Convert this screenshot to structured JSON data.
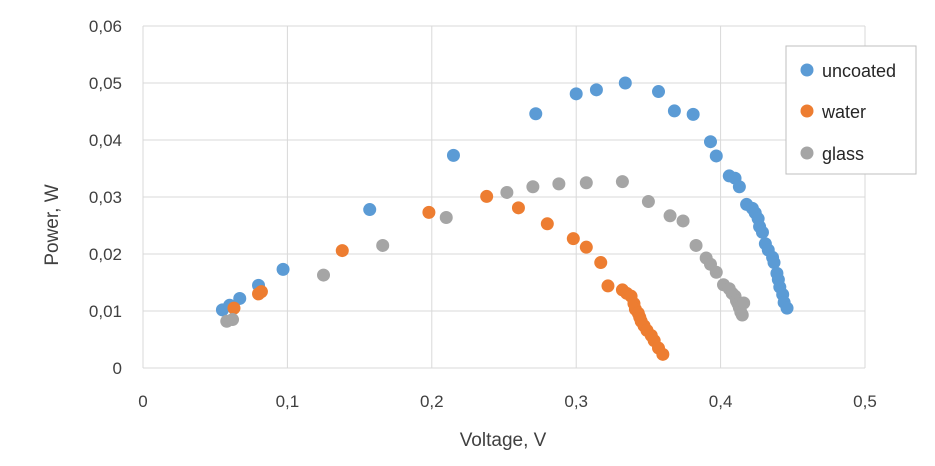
{
  "chart_data": {
    "type": "scatter",
    "title": "",
    "xlabel": "Voltage, V",
    "ylabel": "Power, W",
    "xlim": [
      0,
      0.5
    ],
    "ylim": [
      0,
      0.06
    ],
    "x_ticks": [
      0,
      0.1,
      0.2,
      0.3,
      0.4,
      0.5
    ],
    "x_tick_labels": [
      "0",
      "0,1",
      "0,2",
      "0,3",
      "0,4",
      "0,5"
    ],
    "y_ticks": [
      0,
      0.01,
      0.02,
      0.03,
      0.04,
      0.05,
      0.06
    ],
    "y_tick_labels": [
      "0",
      "0,01",
      "0,02",
      "0,03",
      "0,04",
      "0,05",
      "0,06"
    ],
    "grid": true,
    "legend_position": "top-right",
    "series": [
      {
        "name": "uncoated",
        "color": "#5b9bd5",
        "points": [
          [
            0.055,
            0.0102
          ],
          [
            0.06,
            0.011
          ],
          [
            0.067,
            0.0122
          ],
          [
            0.08,
            0.0145
          ],
          [
            0.097,
            0.0173
          ],
          [
            0.157,
            0.0278
          ],
          [
            0.215,
            0.0373
          ],
          [
            0.272,
            0.0446
          ],
          [
            0.3,
            0.0481
          ],
          [
            0.314,
            0.0488
          ],
          [
            0.334,
            0.05
          ],
          [
            0.357,
            0.0485
          ],
          [
            0.368,
            0.0451
          ],
          [
            0.381,
            0.0445
          ],
          [
            0.393,
            0.0397
          ],
          [
            0.397,
            0.0372
          ],
          [
            0.406,
            0.0337
          ],
          [
            0.41,
            0.0333
          ],
          [
            0.413,
            0.0318
          ],
          [
            0.418,
            0.0287
          ],
          [
            0.422,
            0.028
          ],
          [
            0.424,
            0.0272
          ],
          [
            0.426,
            0.0262
          ],
          [
            0.427,
            0.0248
          ],
          [
            0.429,
            0.0238
          ],
          [
            0.431,
            0.0218
          ],
          [
            0.433,
            0.0207
          ],
          [
            0.436,
            0.0194
          ],
          [
            0.437,
            0.0185
          ],
          [
            0.439,
            0.0166
          ],
          [
            0.44,
            0.0155
          ],
          [
            0.441,
            0.0142
          ],
          [
            0.443,
            0.0129
          ],
          [
            0.444,
            0.0115
          ],
          [
            0.446,
            0.0105
          ]
        ]
      },
      {
        "name": "water",
        "color": "#ed7d31",
        "points": [
          [
            0.063,
            0.0105
          ],
          [
            0.08,
            0.013
          ],
          [
            0.082,
            0.0134
          ],
          [
            0.138,
            0.0206
          ],
          [
            0.198,
            0.0273
          ],
          [
            0.238,
            0.0301
          ],
          [
            0.26,
            0.0281
          ],
          [
            0.28,
            0.0253
          ],
          [
            0.298,
            0.0227
          ],
          [
            0.307,
            0.0212
          ],
          [
            0.317,
            0.0185
          ],
          [
            0.322,
            0.0144
          ],
          [
            0.332,
            0.0137
          ],
          [
            0.335,
            0.0131
          ],
          [
            0.338,
            0.0126
          ],
          [
            0.34,
            0.0113
          ],
          [
            0.341,
            0.0103
          ],
          [
            0.343,
            0.0096
          ],
          [
            0.344,
            0.0089
          ],
          [
            0.345,
            0.0082
          ],
          [
            0.347,
            0.0074
          ],
          [
            0.349,
            0.0066
          ],
          [
            0.352,
            0.0057
          ],
          [
            0.354,
            0.0048
          ],
          [
            0.357,
            0.0035
          ],
          [
            0.36,
            0.0024
          ]
        ]
      },
      {
        "name": "glass",
        "color": "#a5a5a5",
        "points": [
          [
            0.058,
            0.0082
          ],
          [
            0.062,
            0.0085
          ],
          [
            0.125,
            0.0163
          ],
          [
            0.166,
            0.0215
          ],
          [
            0.21,
            0.0264
          ],
          [
            0.252,
            0.0308
          ],
          [
            0.27,
            0.0318
          ],
          [
            0.288,
            0.0323
          ],
          [
            0.307,
            0.0325
          ],
          [
            0.332,
            0.0327
          ],
          [
            0.35,
            0.0292
          ],
          [
            0.365,
            0.0267
          ],
          [
            0.374,
            0.0258
          ],
          [
            0.383,
            0.0215
          ],
          [
            0.39,
            0.0193
          ],
          [
            0.393,
            0.0182
          ],
          [
            0.397,
            0.0168
          ],
          [
            0.402,
            0.0146
          ],
          [
            0.406,
            0.0139
          ],
          [
            0.408,
            0.0131
          ],
          [
            0.41,
            0.0126
          ],
          [
            0.411,
            0.0118
          ],
          [
            0.412,
            0.0113
          ],
          [
            0.413,
            0.0106
          ],
          [
            0.414,
            0.0098
          ],
          [
            0.415,
            0.0093
          ],
          [
            0.416,
            0.0114
          ]
        ]
      }
    ]
  }
}
